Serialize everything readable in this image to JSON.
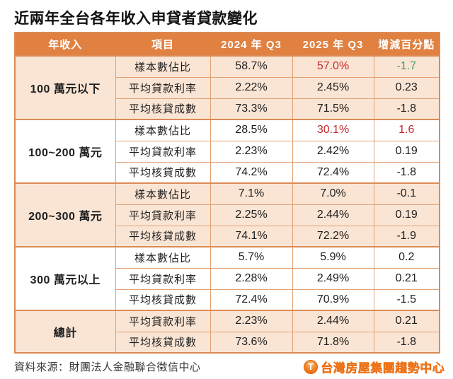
{
  "title": "近兩年全台各年收入申貸者貸款變化",
  "colors": {
    "header_bg": "#E08142",
    "shaded_row_bg": "#FAE5D5",
    "border": "#E2A173",
    "highlight_red": "#C52B2B",
    "highlight_green": "#3AA45C",
    "brand_orange": "#F0761A"
  },
  "table": {
    "headers": [
      "年收入",
      "項目",
      "2024 年 Q3",
      "2025 年 Q3",
      "增減百分點"
    ],
    "groups": [
      {
        "income": "100 萬元以下",
        "shaded": true,
        "rows": [
          {
            "item": "樣本數佔比",
            "y2024": "58.7%",
            "y2025": "57.0%",
            "chg": "-1.7",
            "y2025_hl": "red",
            "chg_hl": "green"
          },
          {
            "item": "平均貸款利率",
            "y2024": "2.22%",
            "y2025": "2.45%",
            "chg": "0.23"
          },
          {
            "item": "平均核貸成數",
            "y2024": "73.3%",
            "y2025": "71.5%",
            "chg": "-1.8"
          }
        ]
      },
      {
        "income": "100~200 萬元",
        "shaded": false,
        "rows": [
          {
            "item": "樣本數佔比",
            "y2024": "28.5%",
            "y2025": "30.1%",
            "chg": "1.6",
            "y2025_hl": "red",
            "chg_hl": "red"
          },
          {
            "item": "平均貸款利率",
            "y2024": "2.23%",
            "y2025": "2.42%",
            "chg": "0.19"
          },
          {
            "item": "平均核貸成數",
            "y2024": "74.2%",
            "y2025": "72.4%",
            "chg": "-1.8"
          }
        ]
      },
      {
        "income": "200~300 萬元",
        "shaded": true,
        "rows": [
          {
            "item": "樣本數佔比",
            "y2024": "7.1%",
            "y2025": "7.0%",
            "chg": "-0.1"
          },
          {
            "item": "平均貸款利率",
            "y2024": "2.25%",
            "y2025": "2.44%",
            "chg": "0.19"
          },
          {
            "item": "平均核貸成數",
            "y2024": "74.1%",
            "y2025": "72.2%",
            "chg": "-1.9"
          }
        ]
      },
      {
        "income": "300 萬元以上",
        "shaded": false,
        "rows": [
          {
            "item": "樣本數佔比",
            "y2024": "5.7%",
            "y2025": "5.9%",
            "chg": "0.2"
          },
          {
            "item": "平均貸款利率",
            "y2024": "2.28%",
            "y2025": "2.49%",
            "chg": "0.21"
          },
          {
            "item": "平均核貸成數",
            "y2024": "72.4%",
            "y2025": "70.9%",
            "chg": "-1.5"
          }
        ]
      },
      {
        "income": "總計",
        "shaded": true,
        "rows": [
          {
            "item": "平均貸款利率",
            "y2024": "2.23%",
            "y2025": "2.44%",
            "chg": "0.21"
          },
          {
            "item": "平均核貸成數",
            "y2024": "73.6%",
            "y2025": "71.8%",
            "chg": "-1.8"
          }
        ]
      }
    ]
  },
  "footer": {
    "source": "資料來源：財團法人金融聯合徵信中心",
    "brand": "台灣房屋集團趨勢中心",
    "brand_icon_letter": "T"
  }
}
